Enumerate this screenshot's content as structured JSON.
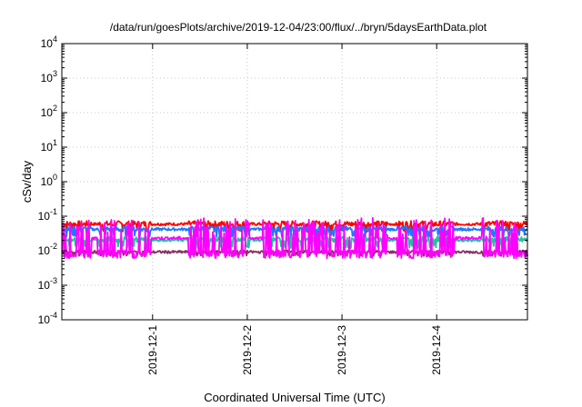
{
  "chart_data": {
    "type": "line",
    "title": "/data/run/goesPlots/archive/2019-12-04/23:00/flux/../bryn/5daysEarthData.plot",
    "xlabel": "Coordinated Universal Time (UTC)",
    "ylabel": "cSv/day",
    "y_scale": "log",
    "ylim": [
      0.0001,
      10000
    ],
    "y_ticks": [
      {
        "value": 0.0001,
        "base": "10",
        "exp": "-4"
      },
      {
        "value": 0.001,
        "base": "10",
        "exp": "-3"
      },
      {
        "value": 0.01,
        "base": "10",
        "exp": "-2"
      },
      {
        "value": 0.1,
        "base": "10",
        "exp": "-1"
      },
      {
        "value": 1,
        "base": "10",
        "exp": "0"
      },
      {
        "value": 10,
        "base": "10",
        "exp": "1"
      },
      {
        "value": 100,
        "base": "10",
        "exp": "2"
      },
      {
        "value": 1000,
        "base": "10",
        "exp": "3"
      },
      {
        "value": 10000,
        "base": "10",
        "exp": "4"
      }
    ],
    "xlim": [
      "2019-11-30T01:00",
      "2019-12-04T23:00"
    ],
    "x_ticks": [
      {
        "value": "2019-12-01T00:00",
        "label": "2019-12-1"
      },
      {
        "value": "2019-12-02T00:00",
        "label": "2019-12-2"
      },
      {
        "value": "2019-12-03T00:00",
        "label": "2019-12-3"
      },
      {
        "value": "2019-12-04T00:00",
        "label": "2019-12-4"
      }
    ],
    "grid": true,
    "colors": {
      "red": "#ff0000",
      "blue": "#1e78ff",
      "teal": "#20c0a0",
      "magenta": "#ff00ff",
      "dark": "#8b3060"
    },
    "series": [
      {
        "color": "#ff0000",
        "y_band": [
          0.035,
          0.1
        ]
      },
      {
        "color": "#1e78ff",
        "y_band": [
          0.025,
          0.07
        ]
      },
      {
        "color": "#20c0a0",
        "y_band": [
          0.012,
          0.035
        ]
      },
      {
        "color": "#8b3060",
        "y_band": [
          0.007,
          0.012
        ]
      },
      {
        "color": "#ff00ff",
        "y_band": [
          0.006,
          0.09
        ]
      }
    ],
    "gaps": [
      {
        "start": "2019-11-30T08:30",
        "end": "2019-11-30T10:00"
      },
      {
        "start": "2019-11-30T23:30",
        "end": "2019-12-01T09:00"
      },
      {
        "start": "2019-12-02T00:30",
        "end": "2019-12-02T04:00"
      },
      {
        "start": "2019-12-03T11:30",
        "end": "2019-12-03T14:00"
      },
      {
        "start": "2019-12-04T04:30",
        "end": "2019-12-04T11:30"
      }
    ]
  }
}
